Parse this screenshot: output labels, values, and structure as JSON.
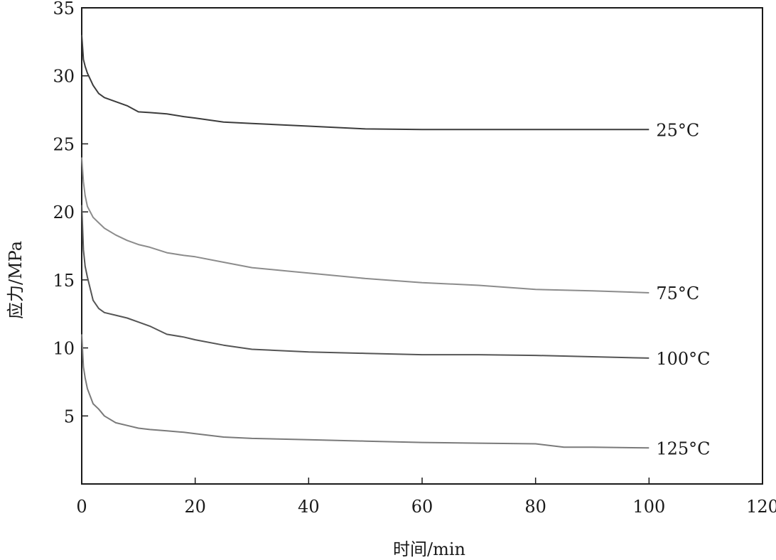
{
  "chart_data": {
    "type": "line",
    "title": "",
    "xlabel": "时间/min",
    "ylabel": "应力/MPa",
    "xlim": [
      0,
      120
    ],
    "ylim": [
      0,
      35
    ],
    "xticks": [
      0,
      20,
      40,
      60,
      80,
      100,
      120
    ],
    "yticks": [
      5,
      10,
      15,
      20,
      25,
      30,
      35
    ],
    "grid": false,
    "legend": "inline labels at right end of each curve",
    "series": [
      {
        "name": "25°C",
        "color": "#3c3c3c",
        "x": [
          0,
          0.3,
          0.6,
          1,
          2,
          3,
          4,
          6,
          8,
          10,
          12,
          15,
          18,
          20,
          25,
          30,
          40,
          50,
          60,
          70,
          80,
          90,
          100
        ],
        "y": [
          33,
          31.2,
          30.7,
          30.2,
          29.3,
          28.7,
          28.4,
          28.1,
          27.8,
          27.35,
          27.3,
          27.2,
          27.0,
          26.9,
          26.6,
          26.5,
          26.3,
          26.1,
          26.05,
          26.05,
          26.05,
          26.05,
          26.05
        ]
      },
      {
        "name": "75°C",
        "color": "#8c8c8c",
        "x": [
          0,
          0.3,
          0.6,
          1,
          2,
          3,
          4,
          6,
          8,
          10,
          12,
          15,
          18,
          20,
          25,
          30,
          40,
          50,
          60,
          70,
          80,
          90,
          100
        ],
        "y": [
          24,
          22.2,
          21.2,
          20.4,
          19.6,
          19.2,
          18.8,
          18.3,
          17.9,
          17.6,
          17.4,
          17.0,
          16.8,
          16.7,
          16.3,
          15.9,
          15.5,
          15.1,
          14.8,
          14.6,
          14.3,
          14.2,
          14.05
        ]
      },
      {
        "name": "100°C",
        "color": "#555555",
        "x": [
          0,
          0.3,
          0.6,
          1,
          2,
          3,
          4,
          6,
          8,
          10,
          12,
          15,
          18,
          20,
          25,
          30,
          40,
          50,
          60,
          70,
          80,
          90,
          100
        ],
        "y": [
          20.5,
          17.2,
          16.0,
          15.2,
          13.5,
          12.9,
          12.6,
          12.4,
          12.2,
          11.9,
          11.6,
          11.0,
          10.8,
          10.6,
          10.2,
          9.9,
          9.7,
          9.6,
          9.5,
          9.5,
          9.45,
          9.35,
          9.25
        ]
      },
      {
        "name": "125°C",
        "color": "#7a7a7a",
        "x": [
          0,
          0.3,
          0.6,
          1,
          2,
          3,
          4,
          6,
          8,
          10,
          12,
          15,
          18,
          20,
          25,
          30,
          40,
          50,
          60,
          70,
          80,
          85,
          90,
          100
        ],
        "y": [
          11,
          8.6,
          7.8,
          7.0,
          5.9,
          5.5,
          5.0,
          4.5,
          4.3,
          4.1,
          4.0,
          3.9,
          3.8,
          3.7,
          3.45,
          3.35,
          3.25,
          3.15,
          3.05,
          3.0,
          2.95,
          2.7,
          2.7,
          2.65
        ]
      }
    ]
  }
}
